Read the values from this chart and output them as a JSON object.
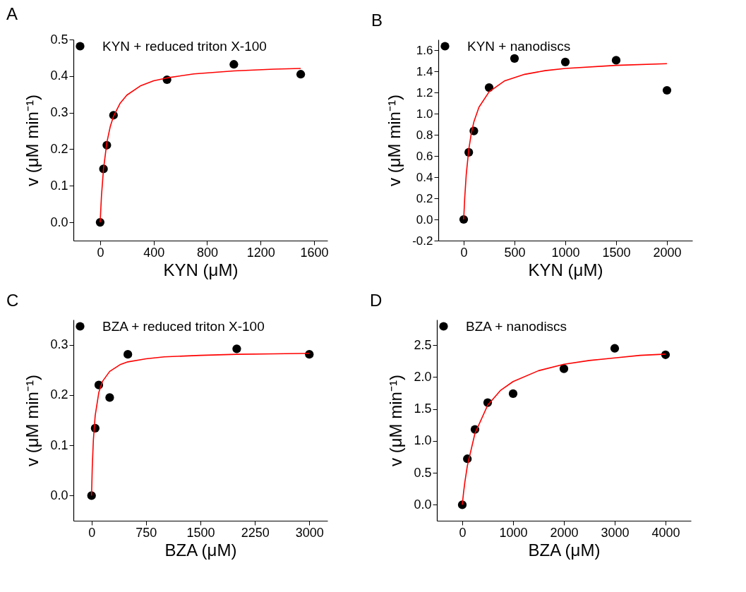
{
  "chart_data": [
    {
      "type": "scatter",
      "title": "A",
      "xlabel": "KYN (μM)",
      "ylabel": "v (μM min⁻¹)",
      "xlim": [
        -200,
        1700
      ],
      "xticks": [
        0,
        400,
        800,
        1200,
        1600
      ],
      "ylim": [
        -0.05,
        0.5
      ],
      "yticks": [
        {
          "value": 0,
          "label": "0.0"
        },
        0.1,
        0.2,
        0.3,
        0.4,
        0.5
      ],
      "legend": "top left",
      "marker": "circle",
      "x": [
        0,
        25,
        50,
        100,
        500,
        1000,
        1500
      ],
      "series": [
        {
          "name": "KYN + reduced triton X-100",
          "color": "#000000",
          "values": [
            0,
            0.146,
            0.211,
            0.293,
            0.39,
            0.432,
            0.405
          ]
        },
        {
          "type": "line",
          "marker": "none",
          "color": "#ff0000",
          "x": [
            0,
            10,
            25,
            50,
            75,
            100,
            150,
            200,
            300,
            400,
            500,
            700,
            1000,
            1300,
            1500
          ],
          "values": [
            0,
            0.073,
            0.145,
            0.218,
            0.261,
            0.29,
            0.326,
            0.348,
            0.373,
            0.387,
            0.395,
            0.406,
            0.414,
            0.419,
            0.421
          ]
        }
      ]
    },
    {
      "type": "scatter",
      "title": "B",
      "xlabel": "KYN (μM)",
      "ylabel": "v (μM min⁻¹)",
      "xlim": [
        -250,
        2250
      ],
      "xticks": [
        0,
        500,
        1000,
        1500,
        2000
      ],
      "ylim": [
        -0.2,
        1.7
      ],
      "yticks": [
        -0.2,
        {
          "value": 0,
          "label": "0.0"
        },
        0.2,
        0.4,
        0.6,
        0.8,
        {
          "value": 1,
          "label": "1.0"
        },
        1.2,
        1.4,
        1.6
      ],
      "legend": "top left",
      "marker": "circle",
      "x": [
        0,
        50,
        100,
        250,
        500,
        1000,
        1500,
        2000
      ],
      "series": [
        {
          "name": "KYN + nanodiscs",
          "color": "#000000",
          "values": [
            0,
            0.634,
            0.836,
            1.246,
            1.521,
            1.487,
            1.504,
            1.22
          ]
        },
        {
          "type": "line",
          "marker": "none",
          "color": "#ff0000",
          "x": [
            0,
            10,
            25,
            50,
            75,
            100,
            150,
            250,
            400,
            600,
            800,
            1000,
            1500,
            2000
          ],
          "values": [
            0,
            0.202,
            0.422,
            0.661,
            0.814,
            0.921,
            1.06,
            1.206,
            1.308,
            1.371,
            1.406,
            1.427,
            1.456,
            1.472
          ]
        }
      ]
    },
    {
      "type": "scatter",
      "title": "C",
      "xlabel": "BZA (μM)",
      "ylabel": "v (μM min⁻¹)",
      "xlim": [
        -250,
        3250
      ],
      "xticks": [
        0,
        750,
        1500,
        2250,
        3000
      ],
      "ylim": [
        -0.05,
        0.35
      ],
      "yticks": [
        {
          "value": 0,
          "label": "0.0"
        },
        0.1,
        0.2,
        0.3
      ],
      "legend": "top left",
      "marker": "circle",
      "x": [
        0,
        50,
        100,
        250,
        500,
        2000,
        3000
      ],
      "series": [
        {
          "name": "BZA + reduced triton X-100",
          "color": "#000000",
          "values": [
            0,
            0.134,
            0.22,
            0.195,
            0.281,
            0.292,
            0.281
          ]
        },
        {
          "type": "line",
          "marker": "none",
          "color": "#ff0000",
          "x": [
            0,
            10,
            25,
            50,
            100,
            150,
            250,
            400,
            500,
            750,
            1000,
            1500,
            2000,
            2500,
            3000
          ],
          "values": [
            0,
            0.057,
            0.11,
            0.159,
            0.205,
            0.227,
            0.247,
            0.261,
            0.266,
            0.272,
            0.276,
            0.279,
            0.281,
            0.282,
            0.283
          ]
        }
      ]
    },
    {
      "type": "scatter",
      "title": "D",
      "xlabel": "BZA (μM)",
      "ylabel": "v (μM min⁻¹)",
      "xlim": [
        -500,
        4500
      ],
      "xticks": [
        0,
        1000,
        2000,
        3000,
        4000
      ],
      "ylim": [
        -0.25,
        2.9
      ],
      "yticks": [
        {
          "value": 0,
          "label": "0.0"
        },
        0.5,
        {
          "value": 1,
          "label": "1.0"
        },
        1.5,
        {
          "value": 2,
          "label": "2.0"
        },
        2.5
      ],
      "legend": "top left",
      "marker": "circle",
      "x": [
        0,
        100,
        250,
        500,
        1000,
        2000,
        3000,
        4000
      ],
      "series": [
        {
          "name": "BZA + nanodiscs",
          "color": "#000000",
          "values": [
            0,
            0.72,
            1.18,
            1.6,
            1.74,
            2.13,
            2.45,
            2.35
          ]
        },
        {
          "type": "line",
          "marker": "none",
          "color": "#ff0000",
          "x": [
            0,
            25,
            50,
            100,
            250,
            500,
            750,
            1000,
            1500,
            2000,
            2500,
            3000,
            3500,
            4000
          ],
          "values": [
            0,
            0.19,
            0.35,
            0.61,
            1.12,
            1.56,
            1.79,
            1.93,
            2.1,
            2.2,
            2.26,
            2.3,
            2.34,
            2.36
          ]
        }
      ]
    }
  ]
}
